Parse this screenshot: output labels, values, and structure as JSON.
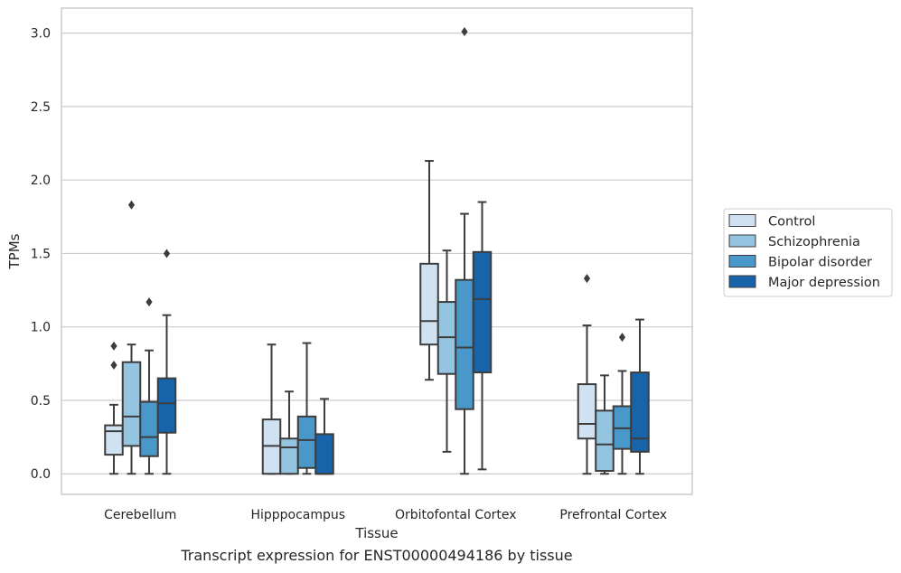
{
  "caption": "Transcript expression for ENST00000494186 by tissue",
  "chart_data": {
    "type": "box",
    "title": "",
    "xlabel": "Tissue",
    "ylabel": "TPMs",
    "ylim": [
      -0.14,
      3.17
    ],
    "yticks": [
      0.0,
      0.5,
      1.0,
      1.5,
      2.0,
      2.5,
      3.0
    ],
    "ytick_labels": [
      "0.0",
      "0.5",
      "1.0",
      "1.5",
      "2.0",
      "2.5",
      "3.0"
    ],
    "grid": "horizontal",
    "legend_placement": "right",
    "categories": [
      "Cerebellum",
      "Hipppocampus",
      "Orbitofontal Cortex",
      "Prefrontal Cortex"
    ],
    "series": [
      {
        "name": "Control",
        "color": "#d0e1f2",
        "boxes": [
          {
            "whislo": 0.0,
            "q1": 0.13,
            "med": 0.29,
            "q3": 0.33,
            "whishi": 0.47,
            "fliers": [
              0.74,
              0.87
            ]
          },
          {
            "whislo": 0.0,
            "q1": 0.0,
            "med": 0.19,
            "q3": 0.37,
            "whishi": 0.88,
            "fliers": []
          },
          {
            "whislo": 0.64,
            "q1": 0.88,
            "med": 1.04,
            "q3": 1.43,
            "whishi": 2.13,
            "fliers": []
          },
          {
            "whislo": 0.0,
            "q1": 0.24,
            "med": 0.34,
            "q3": 0.61,
            "whishi": 1.01,
            "fliers": [
              1.33
            ]
          }
        ]
      },
      {
        "name": "Schizophrenia",
        "color": "#94c4df",
        "boxes": [
          {
            "whislo": 0.0,
            "q1": 0.19,
            "med": 0.39,
            "q3": 0.76,
            "whishi": 0.88,
            "fliers": [
              1.83
            ]
          },
          {
            "whislo": 0.0,
            "q1": 0.0,
            "med": 0.18,
            "q3": 0.24,
            "whishi": 0.56,
            "fliers": []
          },
          {
            "whislo": 0.15,
            "q1": 0.68,
            "med": 0.93,
            "q3": 1.17,
            "whishi": 1.52,
            "fliers": []
          },
          {
            "whislo": 0.0,
            "q1": 0.02,
            "med": 0.2,
            "q3": 0.43,
            "whishi": 0.67,
            "fliers": []
          }
        ]
      },
      {
        "name": "Bipolar disorder",
        "color": "#4a98c9",
        "boxes": [
          {
            "whislo": 0.0,
            "q1": 0.12,
            "med": 0.25,
            "q3": 0.49,
            "whishi": 0.84,
            "fliers": [
              1.17
            ]
          },
          {
            "whislo": 0.0,
            "q1": 0.04,
            "med": 0.23,
            "q3": 0.39,
            "whishi": 0.89,
            "fliers": []
          },
          {
            "whislo": 0.0,
            "q1": 0.44,
            "med": 0.86,
            "q3": 1.32,
            "whishi": 1.77,
            "fliers": [
              3.01
            ]
          },
          {
            "whislo": 0.0,
            "q1": 0.17,
            "med": 0.31,
            "q3": 0.46,
            "whishi": 0.7,
            "fliers": [
              0.93
            ]
          }
        ]
      },
      {
        "name": "Major depression",
        "color": "#1764ab",
        "boxes": [
          {
            "whislo": 0.0,
            "q1": 0.28,
            "med": 0.48,
            "q3": 0.65,
            "whishi": 1.08,
            "fliers": [
              1.5
            ]
          },
          {
            "whislo": 0.0,
            "q1": 0.0,
            "med": 0.0,
            "q3": 0.27,
            "whishi": 0.51,
            "fliers": []
          },
          {
            "whislo": 0.03,
            "q1": 0.69,
            "med": 1.19,
            "q3": 1.51,
            "whishi": 1.85,
            "fliers": []
          },
          {
            "whislo": 0.0,
            "q1": 0.15,
            "med": 0.24,
            "q3": 0.69,
            "whishi": 1.05,
            "fliers": []
          }
        ]
      }
    ]
  }
}
